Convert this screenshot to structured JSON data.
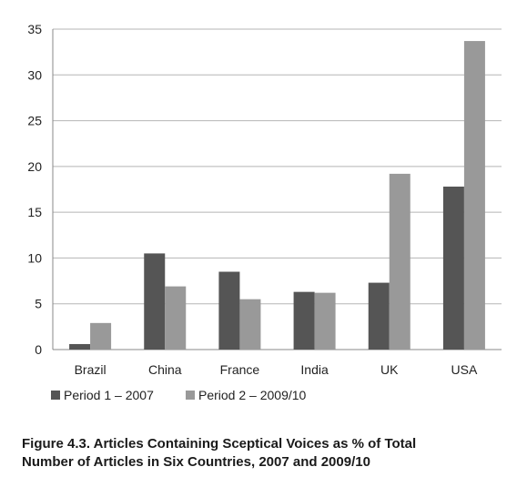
{
  "chart_data": {
    "type": "bar",
    "categories": [
      "Brazil",
      "China",
      "France",
      "India",
      "UK",
      "USA"
    ],
    "series": [
      {
        "name": "Period 1 – 2007",
        "color": "#555555",
        "values": [
          0.6,
          10.5,
          8.5,
          6.3,
          7.3,
          17.8
        ]
      },
      {
        "name": "Period 2 – 2009/10",
        "color": "#999999",
        "values": [
          2.9,
          6.9,
          5.5,
          6.2,
          19.2,
          33.7
        ]
      }
    ],
    "ylim": [
      0,
      35
    ],
    "yticks": [
      0,
      5,
      10,
      15,
      20,
      25,
      30,
      35
    ],
    "grid": true,
    "legend_position": "bottom-left"
  },
  "caption": {
    "line1": "Figure 4.3. Articles Containing Sceptical Voices as % of Total",
    "line2": "Number of Articles in Six Countries, 2007 and 2009/10"
  }
}
